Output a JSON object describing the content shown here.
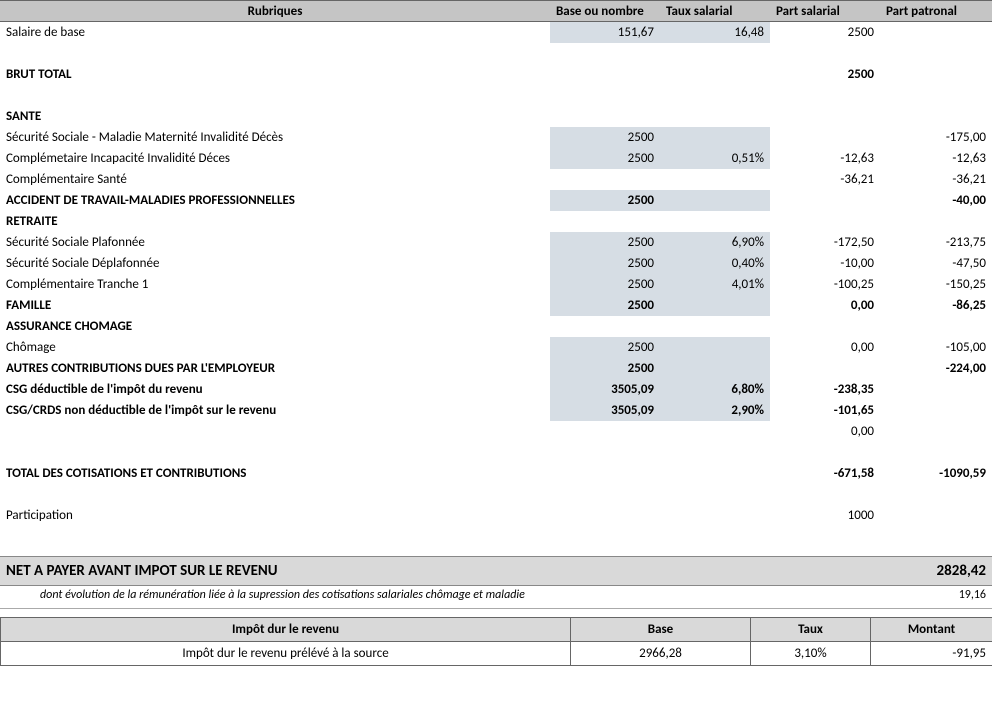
{
  "header": {
    "rubriques": "Rubriques",
    "base": "Base ou nombre",
    "taux": "Taux salarial",
    "part_sal": "Part salarial",
    "part_pat": "Part patronal"
  },
  "rows": [
    {
      "label": "Salaire de base",
      "base": "151,67",
      "taux": "16,48",
      "sal": "2500",
      "pat": "",
      "shade": true,
      "bold": false
    },
    {
      "label": "",
      "base": "",
      "taux": "",
      "sal": "",
      "pat": "",
      "shade": false,
      "bold": false
    },
    {
      "label": "BRUT TOTAL",
      "base": "",
      "taux": "",
      "sal": "2500",
      "pat": "",
      "shade": false,
      "bold": true
    },
    {
      "label": "",
      "base": "",
      "taux": "",
      "sal": "",
      "pat": "",
      "shade": false,
      "bold": false
    },
    {
      "label": "SANTE",
      "base": "",
      "taux": "",
      "sal": "",
      "pat": "",
      "shade": false,
      "bold": true
    },
    {
      "label": "Sécurité Sociale - Maladie Maternité Invalidité Décès",
      "base": "2500",
      "taux": "",
      "sal": "",
      "pat": "-175,00",
      "shade": true,
      "bold": false
    },
    {
      "label": "Complémetaire Incapacité Invalidité Déces",
      "base": "2500",
      "taux": "0,51%",
      "sal": "-12,63",
      "pat": "-12,63",
      "shade": true,
      "bold": false
    },
    {
      "label": "Complémentaire Santé",
      "base": "",
      "taux": "",
      "sal": "-36,21",
      "pat": "-36,21",
      "shade": false,
      "bold": false
    },
    {
      "label": "ACCIDENT DE TRAVAIL-MALADIES PROFESSIONNELLES",
      "base": "2500",
      "taux": "",
      "sal": "",
      "pat": "-40,00",
      "shade": true,
      "bold": true
    },
    {
      "label": "RETRAITE",
      "base": "",
      "taux": "",
      "sal": "",
      "pat": "",
      "shade": false,
      "bold": true
    },
    {
      "label": "Sécurité Sociale Plafonnée",
      "base": "2500",
      "taux": "6,90%",
      "sal": "-172,50",
      "pat": "-213,75",
      "shade": true,
      "bold": false
    },
    {
      "label": "Sécurité Sociale Déplafonnée",
      "base": "2500",
      "taux": "0,40%",
      "sal": "-10,00",
      "pat": "-47,50",
      "shade": true,
      "bold": false
    },
    {
      "label": "Complémentaire Tranche 1",
      "base": "2500",
      "taux": "4,01%",
      "sal": "-100,25",
      "pat": "-150,25",
      "shade": true,
      "bold": false
    },
    {
      "label": "FAMILLE",
      "base": "2500",
      "taux": "",
      "sal": "0,00",
      "pat": "-86,25",
      "shade": true,
      "bold": true
    },
    {
      "label": "ASSURANCE CHOMAGE",
      "base": "",
      "taux": "",
      "sal": "",
      "pat": "",
      "shade": false,
      "bold": true
    },
    {
      "label": "Chômage",
      "base": "2500",
      "taux": "",
      "sal": "0,00",
      "pat": "-105,00",
      "shade": true,
      "bold": false
    },
    {
      "label": "AUTRES CONTRIBUTIONS DUES PAR L'EMPLOYEUR",
      "base": "2500",
      "taux": "",
      "sal": "",
      "pat": "-224,00",
      "shade": true,
      "bold": true
    },
    {
      "label": "CSG déductible de l'impôt du revenu",
      "base": "3505,09",
      "taux": "6,80%",
      "sal": "-238,35",
      "pat": "",
      "shade": true,
      "bold": true
    },
    {
      "label": "CSG/CRDS non déductible de l'impôt sur le revenu",
      "base": "3505,09",
      "taux": "2,90%",
      "sal": "-101,65",
      "pat": "",
      "shade": true,
      "bold": true
    },
    {
      "label": "",
      "base": "",
      "taux": "",
      "sal": "0,00",
      "pat": "",
      "shade": false,
      "bold": false
    },
    {
      "label": "",
      "base": "",
      "taux": "",
      "sal": "",
      "pat": "",
      "shade": false,
      "bold": false
    },
    {
      "label": "TOTAL DES COTISATIONS ET CONTRIBUTIONS",
      "base": "",
      "taux": "",
      "sal": "-671,58",
      "pat": "-1090,59",
      "shade": false,
      "bold": true
    },
    {
      "label": "",
      "base": "",
      "taux": "",
      "sal": "",
      "pat": "",
      "shade": false,
      "bold": false
    },
    {
      "label": "Participation",
      "base": "",
      "taux": "",
      "sal": "1000",
      "pat": "",
      "shade": false,
      "bold": false
    }
  ],
  "net": {
    "label": "NET A PAYER AVANT IMPOT SUR LE REVENU",
    "value": "2828,42",
    "note": "dont évolution de la rémunération liée à la supression des cotisations salariales chômage et maladie",
    "note_value": "19,16"
  },
  "impot": {
    "h_label": "Impôt dur le revenu",
    "h_base": "Base",
    "h_taux": "Taux",
    "h_montant": "Montant",
    "r_label": "Impôt dur le revenu prélévé à la source",
    "r_base": "2966,28",
    "r_taux": "3,10%",
    "r_montant": "-91,95"
  }
}
